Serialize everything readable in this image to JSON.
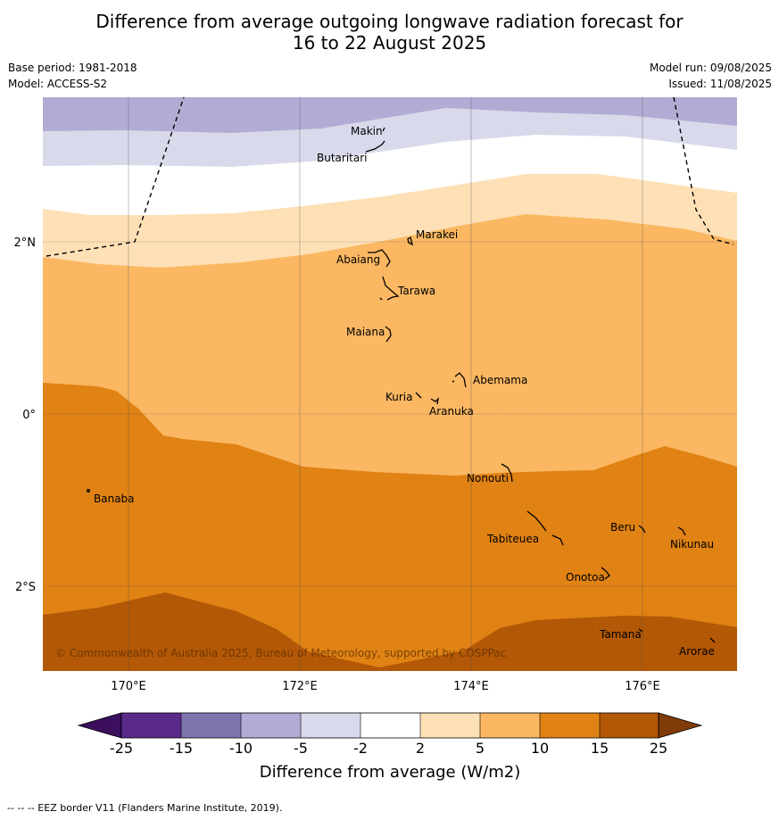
{
  "title_line1": "Difference from average outgoing longwave radiation forecast for",
  "title_line2": "16 to 22 August 2025",
  "base_period": "Base period: 1981-2018",
  "model": "Model: ACCESS-S2",
  "model_run": "Model run: 09/08/2025",
  "issued": "Issued: 11/08/2025",
  "copyright": "© Commonwealth of Australia 2025, Bureau of Meteorology, supported by COSPPac",
  "footer": "--  --  -- EEZ border V11 (Flanders Marine Institute, 2019).",
  "axes": {
    "lon_labels": [
      "170°E",
      "172°E",
      "174°E",
      "176°E"
    ],
    "lat_labels": [
      "2°N",
      "0°",
      "2°S"
    ]
  },
  "places": {
    "makin": "Makin",
    "butaritari": "Butaritari",
    "marakei": "Marakei",
    "abaiang": "Abaiang",
    "tarawa": "Tarawa",
    "maiana": "Maiana",
    "abemama": "Abemama",
    "kuria": "Kuria",
    "aranuka": "Aranuka",
    "nonouti": "Nonouti",
    "banaba": "Banaba",
    "beru": "Beru",
    "tabiteuea": "Tabiteuea",
    "nikunau": "Nikunau",
    "onotoa": "Onotoa",
    "tamana": "Tamana",
    "arorae": "Arorae"
  },
  "colorbar": {
    "title": "Difference from average (W/m2)",
    "ticks": [
      "-25",
      "-15",
      "-10",
      "-5",
      "-2",
      "2",
      "5",
      "10",
      "15",
      "25"
    ],
    "colors": {
      "below_min": "#3b0f5e",
      "m25_m15": "#5a2a8a",
      "m15_m10": "#8074ae",
      "m10_m5": "#b2acd4",
      "m5_m2": "#d8d9ea",
      "m2_2": "#ffffff",
      "p2_p5": "#fee0b6",
      "p5_p10": "#fbb762",
      "p10_p15": "#e08214",
      "p15_p25": "#b35806",
      "above_max": "#7f3b08"
    }
  }
}
